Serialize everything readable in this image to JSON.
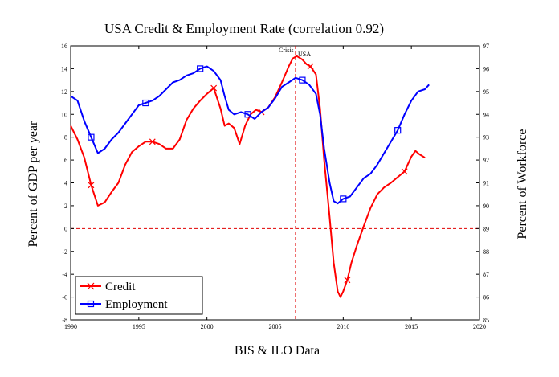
{
  "chart_data": {
    "type": "line",
    "title": "USA Credit & Employment Rate (correlation 0.92)",
    "xlabel": "BIS & ILO Data",
    "ylabel_left": "Percent of GDP per year",
    "ylabel_right": "Percent of Workforce",
    "xlim": [
      1990,
      2020
    ],
    "ylim_left": [
      -8,
      16
    ],
    "ylim_right": [
      85,
      97
    ],
    "x_ticks": [
      "1990",
      "1995",
      "2000",
      "2005",
      "2010",
      "2015",
      "2020"
    ],
    "y_ticks_left": [
      "-8",
      "-6",
      "-4",
      "-2",
      "0",
      "2",
      "4",
      "6",
      "8",
      "10",
      "12",
      "14",
      "16"
    ],
    "y_ticks_right": [
      "85",
      "86",
      "87",
      "88",
      "89",
      "90",
      "91",
      "92",
      "93",
      "94",
      "95",
      "96",
      "97"
    ],
    "grid": false,
    "legend_position": "bottom-left",
    "annotations": {
      "crisis_label": "Crisis",
      "usa_label": "USA",
      "crisis_x": 2006.5,
      "zero_line": 0
    },
    "series": [
      {
        "name": "Credit",
        "color": "#ff0000",
        "axis": "left",
        "marker": "x",
        "x": [
          1990,
          1990.5,
          1991,
          1991.5,
          1992,
          1992.5,
          1993,
          1993.5,
          1994,
          1994.5,
          1995,
          1995.5,
          1996,
          1996.5,
          1997,
          1997.5,
          1998,
          1998.5,
          1999,
          1999.5,
          2000,
          2000.5,
          2001,
          2001.3,
          2001.6,
          2002,
          2002.4,
          2002.8,
          2003.2,
          2003.6,
          2004,
          2004.5,
          2005,
          2005.5,
          2006,
          2006.3,
          2006.6,
          2007,
          2007.3,
          2007.6,
          2008,
          2008.3,
          2008.6,
          2009,
          2009.3,
          2009.6,
          2009.8,
          2010,
          2010.3,
          2010.6,
          2011,
          2011.5,
          2012,
          2012.5,
          2013,
          2013.5,
          2014,
          2014.5,
          2015,
          2015.3,
          2015.6,
          2016
        ],
        "values": [
          9.0,
          7.8,
          6.2,
          3.8,
          2.0,
          2.3,
          3.2,
          4.0,
          5.6,
          6.7,
          7.2,
          7.6,
          7.6,
          7.4,
          7.0,
          7.0,
          7.8,
          9.5,
          10.5,
          11.2,
          11.8,
          12.3,
          10.5,
          9.0,
          9.2,
          8.8,
          7.4,
          9.0,
          10.0,
          10.4,
          10.2,
          10.6,
          11.5,
          12.8,
          14.2,
          14.9,
          15.1,
          14.8,
          14.4,
          14.2,
          13.5,
          10.5,
          6.0,
          1.0,
          -3.0,
          -5.5,
          -6.0,
          -5.5,
          -4.5,
          -3.0,
          -1.5,
          0.2,
          1.8,
          3.0,
          3.6,
          4.0,
          4.5,
          5.0,
          6.3,
          6.8,
          6.5,
          6.2
        ]
      },
      {
        "name": "Employment",
        "color": "#0000ff",
        "axis": "right",
        "marker": "square",
        "x": [
          1990,
          1990.5,
          1991,
          1991.5,
          1992,
          1992.5,
          1993,
          1993.5,
          1994,
          1994.5,
          1995,
          1995.5,
          1996,
          1996.5,
          1997,
          1997.5,
          1998,
          1998.5,
          1999,
          1999.5,
          2000,
          2000.5,
          2001,
          2001.3,
          2001.6,
          2002,
          2002.5,
          2003,
          2003.5,
          2004,
          2004.5,
          2005,
          2005.5,
          2006,
          2006.5,
          2007,
          2007.5,
          2008,
          2008.3,
          2008.6,
          2009,
          2009.3,
          2009.6,
          2010,
          2010.5,
          2011,
          2011.5,
          2012,
          2012.5,
          2013,
          2013.5,
          2014,
          2014.5,
          2015,
          2015.5,
          2016,
          2016.3
        ],
        "values": [
          94.8,
          94.6,
          93.7,
          93.0,
          92.3,
          92.5,
          92.9,
          93.2,
          93.6,
          94.0,
          94.4,
          94.5,
          94.6,
          94.8,
          95.1,
          95.4,
          95.5,
          95.7,
          95.8,
          96.0,
          96.1,
          95.9,
          95.5,
          94.8,
          94.2,
          94.0,
          94.1,
          94.0,
          93.8,
          94.1,
          94.3,
          94.7,
          95.2,
          95.4,
          95.6,
          95.5,
          95.3,
          94.9,
          94.0,
          92.5,
          91.0,
          90.2,
          90.1,
          90.3,
          90.4,
          90.8,
          91.2,
          91.4,
          91.8,
          92.3,
          92.8,
          93.3,
          94.0,
          94.6,
          95.0,
          95.1,
          95.3
        ]
      }
    ]
  }
}
